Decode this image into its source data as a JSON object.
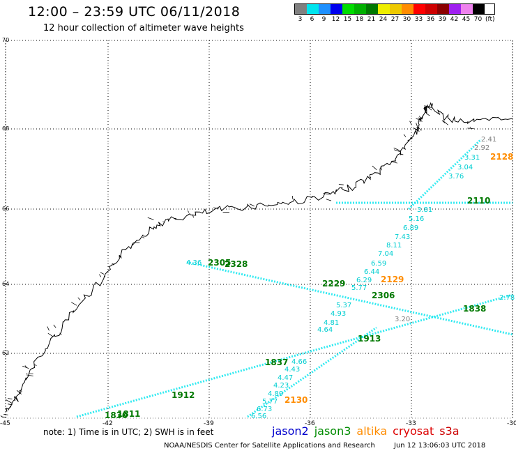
{
  "header": {
    "title": "12:00 – 23:59 UTC 06/11/2018",
    "subtitle": "12 hour collection of altimeter wave heights"
  },
  "legend": {
    "unit": "(ft)",
    "items": [
      {
        "label": "3",
        "color": "#808080"
      },
      {
        "label": "6",
        "color": "#00e5ee"
      },
      {
        "label": "9",
        "color": "#1e90ff"
      },
      {
        "label": "12",
        "color": "#0000ee"
      },
      {
        "label": "15",
        "color": "#00dd00"
      },
      {
        "label": "18",
        "color": "#00b000"
      },
      {
        "label": "21",
        "color": "#007800"
      },
      {
        "label": "24",
        "color": "#eeee00"
      },
      {
        "label": "27",
        "color": "#eec900"
      },
      {
        "label": "30",
        "color": "#ff8c00"
      },
      {
        "label": "33",
        "color": "#ff0000"
      },
      {
        "label": "36",
        "color": "#cd0000"
      },
      {
        "label": "39",
        "color": "#8b0000"
      },
      {
        "label": "42",
        "color": "#a020f0"
      },
      {
        "label": "45",
        "color": "#ee82ee"
      },
      {
        "label": "70",
        "color": "#000000"
      }
    ]
  },
  "map": {
    "lat_labels": [
      "70",
      "68",
      "66",
      "64",
      "62"
    ],
    "lon_labels": [
      "-45",
      "-42",
      "-39",
      "-36",
      "-33",
      "-30"
    ]
  },
  "readings": [
    {
      "text": "2.41",
      "color": "#808080"
    },
    {
      "text": "2.92",
      "color": "#808080"
    },
    {
      "text": "3.31",
      "color": "#00ced1"
    },
    {
      "text": "2128",
      "color": "#ff8c00"
    },
    {
      "text": "3.04",
      "color": "#00ced1"
    },
    {
      "text": "3.76",
      "color": "#00ced1"
    },
    {
      "text": "2110",
      "color": "#007800"
    },
    {
      "text": "3.81",
      "color": "#00ced1"
    },
    {
      "text": "5.16",
      "color": "#00ced1"
    },
    {
      "text": "6.89",
      "color": "#00ced1"
    },
    {
      "text": "7.43",
      "color": "#00ced1"
    },
    {
      "text": "8.11",
      "color": "#00ced1"
    },
    {
      "text": "7.04",
      "color": "#00ced1"
    },
    {
      "text": "6.59",
      "color": "#00ced1"
    },
    {
      "text": "6.44",
      "color": "#00ced1"
    },
    {
      "text": "6.29",
      "color": "#00ced1"
    },
    {
      "text": "2129",
      "color": "#ff8c00"
    },
    {
      "text": "2229",
      "color": "#007800"
    },
    {
      "text": "5.77",
      "color": "#00ced1"
    },
    {
      "text": "2306",
      "color": "#007800"
    },
    {
      "text": "5.37",
      "color": "#00ced1"
    },
    {
      "text": "4.93",
      "color": "#00ced1"
    },
    {
      "text": "4.81",
      "color": "#00ced1"
    },
    {
      "text": "4.64",
      "color": "#00ced1"
    },
    {
      "text": "1838",
      "color": "#007800"
    },
    {
      "text": "1913",
      "color": "#007800"
    },
    {
      "text": "2305",
      "color": "#007800"
    },
    {
      "text": "2328",
      "color": "#007800"
    },
    {
      "text": "4.36",
      "color": "#00ced1"
    },
    {
      "text": "1837",
      "color": "#007800"
    },
    {
      "text": "4.66",
      "color": "#00ced1"
    },
    {
      "text": "4.43",
      "color": "#00ced1"
    },
    {
      "text": "4.47",
      "color": "#00ced1"
    },
    {
      "text": "4.23",
      "color": "#00ced1"
    },
    {
      "text": "4.89",
      "color": "#00ced1"
    },
    {
      "text": "5.77",
      "color": "#00ced1"
    },
    {
      "text": "6.73",
      "color": "#00ced1"
    },
    {
      "text": "6.56",
      "color": "#00ced1"
    },
    {
      "text": "2130",
      "color": "#ff8c00"
    },
    {
      "text": "1912",
      "color": "#007800"
    },
    {
      "text": "1811",
      "color": "#007800"
    },
    {
      "text": "1830",
      "color": "#007800"
    },
    {
      "text": "2.78",
      "color": "#00ced1"
    },
    {
      "text": "3.20",
      "color": "#808080"
    }
  ],
  "footer": {
    "note": "note:  1) Time is in UTC;  2) SWH is in feet",
    "satellites": [
      {
        "name": "jason2",
        "color": "#0000cd"
      },
      {
        "name": "jason3",
        "color": "#008b00"
      },
      {
        "name": "altika",
        "color": "#ff8c00"
      },
      {
        "name": "cryosat",
        "color": "#dd0000"
      },
      {
        "name": "s3a",
        "color": "#cc0000"
      }
    ],
    "credit": "NOAA/NESDIS Center for Satellite Applications and Research",
    "generated": "Jun 12 13:06:03 UTC 2018"
  }
}
